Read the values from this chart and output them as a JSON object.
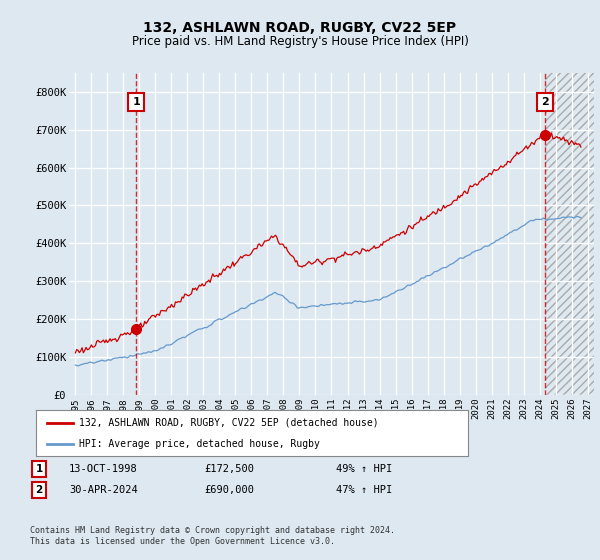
{
  "title": "132, ASHLAWN ROAD, RUGBY, CV22 5EP",
  "subtitle": "Price paid vs. HM Land Registry's House Price Index (HPI)",
  "ylim": [
    0,
    850000
  ],
  "yticks": [
    0,
    100000,
    200000,
    300000,
    400000,
    500000,
    600000,
    700000,
    800000
  ],
  "ytick_labels": [
    "£0",
    "£100K",
    "£200K",
    "£300K",
    "£400K",
    "£500K",
    "£600K",
    "£700K",
    "£800K"
  ],
  "background_color": "#dde8f0",
  "plot_bg_color": "#dde8f0",
  "grid_color": "#ffffff",
  "red_color": "#cc0000",
  "blue_color": "#6699cc",
  "transaction1_date": "13-OCT-1998",
  "transaction1_price": 172500,
  "transaction1_year": 1998.79,
  "transaction2_date": "30-APR-2024",
  "transaction2_price": 690000,
  "transaction2_year": 2024.33,
  "legend_line1": "132, ASHLAWN ROAD, RUGBY, CV22 5EP (detached house)",
  "legend_line2": "HPI: Average price, detached house, Rugby",
  "footnote1": "Contains HM Land Registry data © Crown copyright and database right 2024.",
  "footnote2": "This data is licensed under the Open Government Licence v3.0.",
  "transaction1_hpi": "49% ↑ HPI",
  "transaction2_hpi": "47% ↑ HPI"
}
